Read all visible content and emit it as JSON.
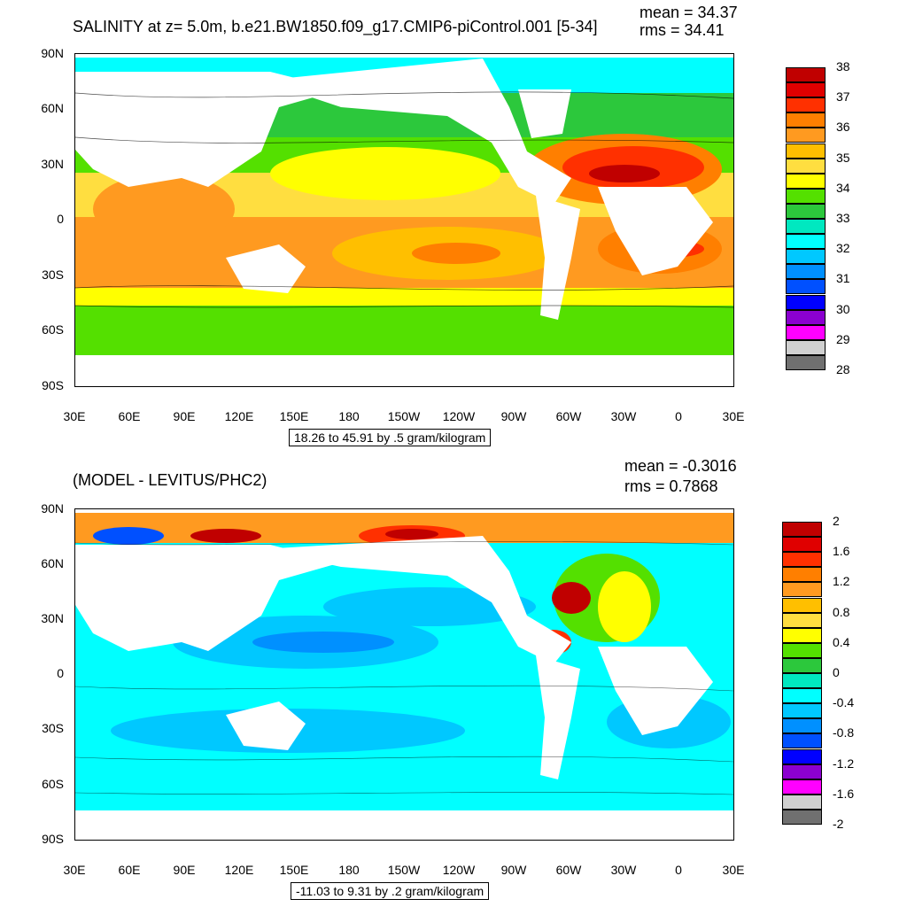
{
  "panels": [
    {
      "title": "SALINITY at z=   5.0m, b.e21.BW1850.f09_g17.CMIP6-piControl.001 [5-34]",
      "mean_text": "mean = 34.37",
      "rms_text": "rms = 34.41",
      "info_text": "18.26 to 45.91 by .5 gram/kilogram",
      "lat_labels": [
        "90N",
        "60N",
        "30N",
        "0",
        "30S",
        "60S",
        "90S"
      ],
      "lon_labels": [
        "30E",
        "60E",
        "90E",
        "120E",
        "150E",
        "180",
        "150W",
        "120W",
        "90W",
        "60W",
        "30W",
        "0",
        "30E"
      ],
      "colorbar": {
        "colors": [
          "#c00000",
          "#e00000",
          "#ff3000",
          "#ff7f00",
          "#ff9a20",
          "#ffbf00",
          "#ffde40",
          "#ffff00",
          "#54e000",
          "#2cc83c",
          "#00e8c0",
          "#00ffff",
          "#00c8ff",
          "#0090ff",
          "#0050ff",
          "#0000ff",
          "#8b00d0",
          "#ff00ff",
          "#d0d0d0",
          "#707070"
        ],
        "labels": [
          "38",
          "37",
          "36",
          "35",
          "34",
          "33",
          "32",
          "31",
          "30",
          "29",
          "28"
        ]
      }
    },
    {
      "title": "(MODEL - LEVITUS/PHC2)",
      "mean_text": "mean = -0.3016",
      "rms_text": "rms = 0.7868",
      "info_text": "-11.03 to 9.31 by .2 gram/kilogram",
      "lat_labels": [
        "90N",
        "60N",
        "30N",
        "0",
        "30S",
        "60S",
        "90S"
      ],
      "lon_labels": [
        "30E",
        "60E",
        "90E",
        "120E",
        "150E",
        "180",
        "150W",
        "120W",
        "90W",
        "60W",
        "30W",
        "0",
        "30E"
      ],
      "colorbar": {
        "colors": [
          "#c00000",
          "#e00000",
          "#ff3000",
          "#ff7f00",
          "#ff9a20",
          "#ffbf00",
          "#ffde40",
          "#ffff00",
          "#54e000",
          "#2cc83c",
          "#00e8c0",
          "#00ffff",
          "#00c8ff",
          "#0090ff",
          "#0050ff",
          "#0000ff",
          "#8b00d0",
          "#ff00ff",
          "#d0d0d0",
          "#707070"
        ],
        "labels": [
          "2",
          "1.6",
          "1.2",
          "0.8",
          "0.4",
          "0",
          "-0.4",
          "-0.8",
          "-1.2",
          "-1.6",
          "-2"
        ]
      }
    }
  ]
}
